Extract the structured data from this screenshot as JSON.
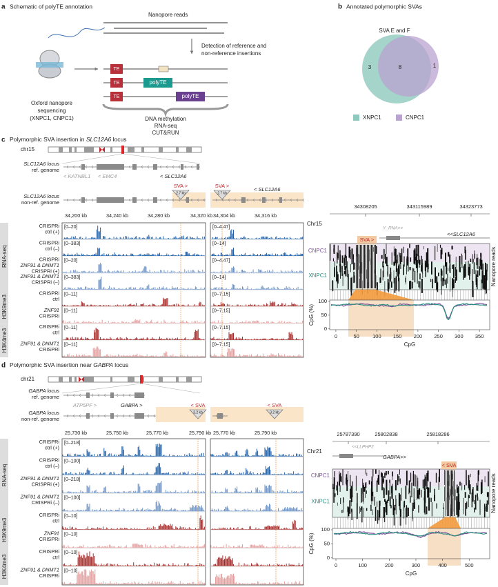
{
  "panel_a": {
    "label": "a",
    "title": "Schematic of polyTE annotation",
    "nanopore_reads": "Nanopore reads",
    "detection": [
      "Detection of reference and",
      "non-reference insertions"
    ],
    "sequencing": [
      "Oxford nanopore",
      "sequencing",
      "(XNPC1, CNPC1)"
    ],
    "te_labels": [
      "TE",
      "TE",
      "TE"
    ],
    "polyte_labels": [
      "polyTE",
      "polyTE"
    ],
    "assays": [
      "DNA methylation",
      "RNA-seq",
      "CUT&RUN"
    ]
  },
  "panel_b": {
    "label": "b",
    "title": "Annotated polymorphic SVAs",
    "venn_title": "SVA E and F",
    "counts": [
      3,
      8,
      1
    ],
    "legend": [
      "XNPC1",
      "CNPC1"
    ]
  },
  "panel_c": {
    "label": "c",
    "title": [
      "Polymorphic SVA insertion in ",
      "SLC12A6",
      " locus"
    ],
    "chromosome": "chr15",
    "ref_label": [
      "SLC12A6 locus",
      "ref. genome"
    ],
    "ref_genes": [
      "< KATNBL1",
      "< EMC4",
      "< SLC12A6"
    ],
    "nonref_label": [
      "SLC12A6 locus",
      "non-ref. genome"
    ],
    "insertion": [
      "SVA >",
      "SVA >"
    ],
    "insertion_size": [
      "2.7 kb",
      "2.7 kb"
    ],
    "nonref_gene": "< SLC12A6",
    "coords_left": [
      "34,200 kb",
      "34,240 kb",
      "34,280 kb",
      "34,320 kb"
    ],
    "coords_right": [
      "34,304 kb",
      "34,316 kb"
    ],
    "groups": [
      "RNA-seq",
      "H3K9me3",
      "H3K4me3"
    ],
    "tracks": [
      {
        "label": [
          "CRISPRi",
          "ctrl (+)"
        ],
        "range_left": "[0–20]",
        "range_right": "[0–4.47]"
      },
      {
        "label": [
          "CRISPRi",
          "ctrl (–)"
        ],
        "range_left": "[0–383]",
        "range_right": "[0–14]"
      },
      {
        "label": [
          "CRISPRi",
          "ZNF91 & DNMT1",
          "CRISPRi (+)"
        ],
        "range_left": "[0–20]",
        "range_right": "[0–4.47]"
      },
      {
        "label": [
          "ZNF91 & DNMT1",
          "CRISPRi (–)"
        ],
        "range_left": "[0–383]",
        "range_right": "[0–14]"
      },
      {
        "label": [
          "CRISPRi",
          "ctrl"
        ],
        "range_left": "[0–11]",
        "range_right": "[0–7.15]"
      },
      {
        "label": [
          "ZNF91",
          "CRISPRi"
        ],
        "range_left": "[0–11]",
        "range_right": "[0–7.15]"
      },
      {
        "label": [
          "CRISPRi",
          "ctrl"
        ],
        "range_left": "[0–11]",
        "range_right": "[0–7.15]"
      },
      {
        "label": [
          "ZNF91 & DNMT1",
          "CRISPRi"
        ],
        "range_left": "[0–11]",
        "range_right": "[0–7.15]"
      }
    ],
    "methylation": {
      "chromosome": "Chr15",
      "coords": [
        "34308205",
        "343115989",
        "34323773"
      ],
      "genes": [
        "Y_RNA>>",
        "<<SLC12A6"
      ],
      "insertion": "SVA >",
      "samples": [
        "CNPC1",
        "XNPC1"
      ],
      "side_label": "Nanopore reads",
      "ylabel": "CpG (%)",
      "xlabel": "CpG",
      "yticks": [
        100,
        50,
        0
      ],
      "xticks": [
        0,
        50,
        100,
        150,
        200,
        250,
        300,
        350
      ],
      "xlim": [
        -15,
        375
      ],
      "ylim": [
        -3,
        105
      ]
    }
  },
  "panel_d": {
    "label": "d",
    "title": [
      "Polymorphic SVA insertion near ",
      "GABPA",
      " locus"
    ],
    "chromosome": "chr21",
    "ref_label": [
      "GABPA locus",
      "ref. genome"
    ],
    "ref_genes": [
      "ATP5PF >",
      "GABPA >"
    ],
    "nonref_label": [
      "GABPA locus",
      "non-ref. genome"
    ],
    "insertion": [
      "< SVA",
      "< SVA"
    ],
    "insertion_size": [
      "3.2 kb",
      "3.2 kb"
    ],
    "coords_left": [
      "25,730 kb",
      "25,750 kb",
      "25,770 kb",
      "25,790 kb"
    ],
    "coords_right": [
      "25,770 kb",
      "25,790 kb"
    ],
    "groups": [
      "RNA-seq",
      "H3K9me3",
      "H3K4me3"
    ],
    "tracks": [
      {
        "label": [
          "CRISPRi",
          "ctrl (+)"
        ],
        "range_left": "[0–218]"
      },
      {
        "label": [
          "CRISPRi",
          "ctrl (–)"
        ],
        "range_left": "[0–100]"
      },
      {
        "label": [
          "ZNF91 & DNMT1",
          "CRISPRi (+)"
        ],
        "range_left": "[0–218]"
      },
      {
        "label": [
          "ZNF91 & DNMT1",
          "CRISPRi (–)"
        ],
        "range_left": "[0–100]"
      },
      {
        "label": [
          "CRISPRi",
          "ctrl"
        ],
        "range_left": "[0–10]"
      },
      {
        "label": [
          "ZNF91",
          "CRISPRi"
        ],
        "range_left": "[0–10]"
      },
      {
        "label": [
          "CRISPRi",
          "ctrl"
        ],
        "range_left": "[0–10]"
      },
      {
        "label": [
          "ZNF91 & DNMT1",
          "CRISPRi"
        ],
        "range_left": "[0–10]"
      }
    ],
    "methylation": {
      "chromosome": "Chr21",
      "coords": [
        "25787390",
        "25802838",
        "25818286"
      ],
      "genes": [
        "<<LLPHP2",
        "GABPA>>"
      ],
      "insertion": "< SVA",
      "samples": [
        "CNPC1",
        "XNPC1"
      ],
      "side_label": "Nanopore reads",
      "ylabel": "CpG (%)",
      "xlabel": "CpG",
      "yticks": [
        100,
        50,
        0
      ],
      "xticks": [
        0,
        100,
        200,
        300,
        400,
        500
      ],
      "xlim": [
        -13,
        577
      ],
      "ylim": [
        -3,
        105
      ]
    }
  }
}
